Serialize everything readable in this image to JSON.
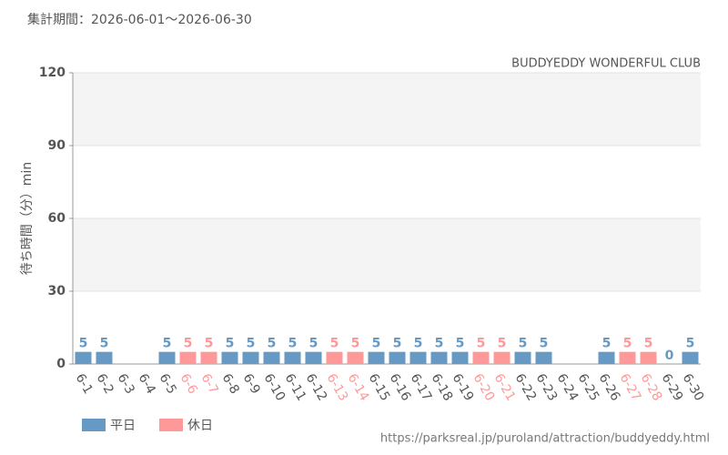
{
  "chart_data": {
    "type": "bar",
    "subtitle": "集計期間：2026-06-01～2026-06-30",
    "title": "BUDDYEDDY WONDERFUL CLUB",
    "y_label": "待ち時間（分）min",
    "source": "https://parksreal.jp/puroland/attraction/buddyeddy.html",
    "categories": [
      "6-1",
      "6-2",
      "6-3",
      "6-4",
      "6-5",
      "6-6",
      "6-7",
      "6-8",
      "6-9",
      "6-10",
      "6-11",
      "6-12",
      "6-13",
      "6-14",
      "6-15",
      "6-16",
      "6-17",
      "6-18",
      "6-19",
      "6-20",
      "6-21",
      "6-22",
      "6-23",
      "6-24",
      "6-25",
      "6-26",
      "6-27",
      "6-28",
      "6-29",
      "6-30"
    ],
    "series": [
      {
        "name": "平日",
        "color": "#6699c4",
        "values": [
          5,
          5,
          null,
          null,
          5,
          null,
          null,
          5,
          5,
          5,
          5,
          5,
          null,
          null,
          5,
          5,
          5,
          5,
          5,
          null,
          null,
          5,
          5,
          null,
          null,
          5,
          null,
          null,
          0,
          5
        ]
      },
      {
        "name": "休日",
        "color": "#ff9999",
        "values": [
          null,
          null,
          null,
          null,
          null,
          5,
          5,
          null,
          null,
          null,
          null,
          null,
          5,
          5,
          null,
          null,
          null,
          null,
          null,
          5,
          5,
          null,
          null,
          null,
          null,
          null,
          5,
          5,
          null,
          null
        ]
      }
    ],
    "ylim": [
      0,
      120
    ],
    "yticks": [
      0,
      30,
      60,
      90,
      120
    ],
    "grid": true
  }
}
